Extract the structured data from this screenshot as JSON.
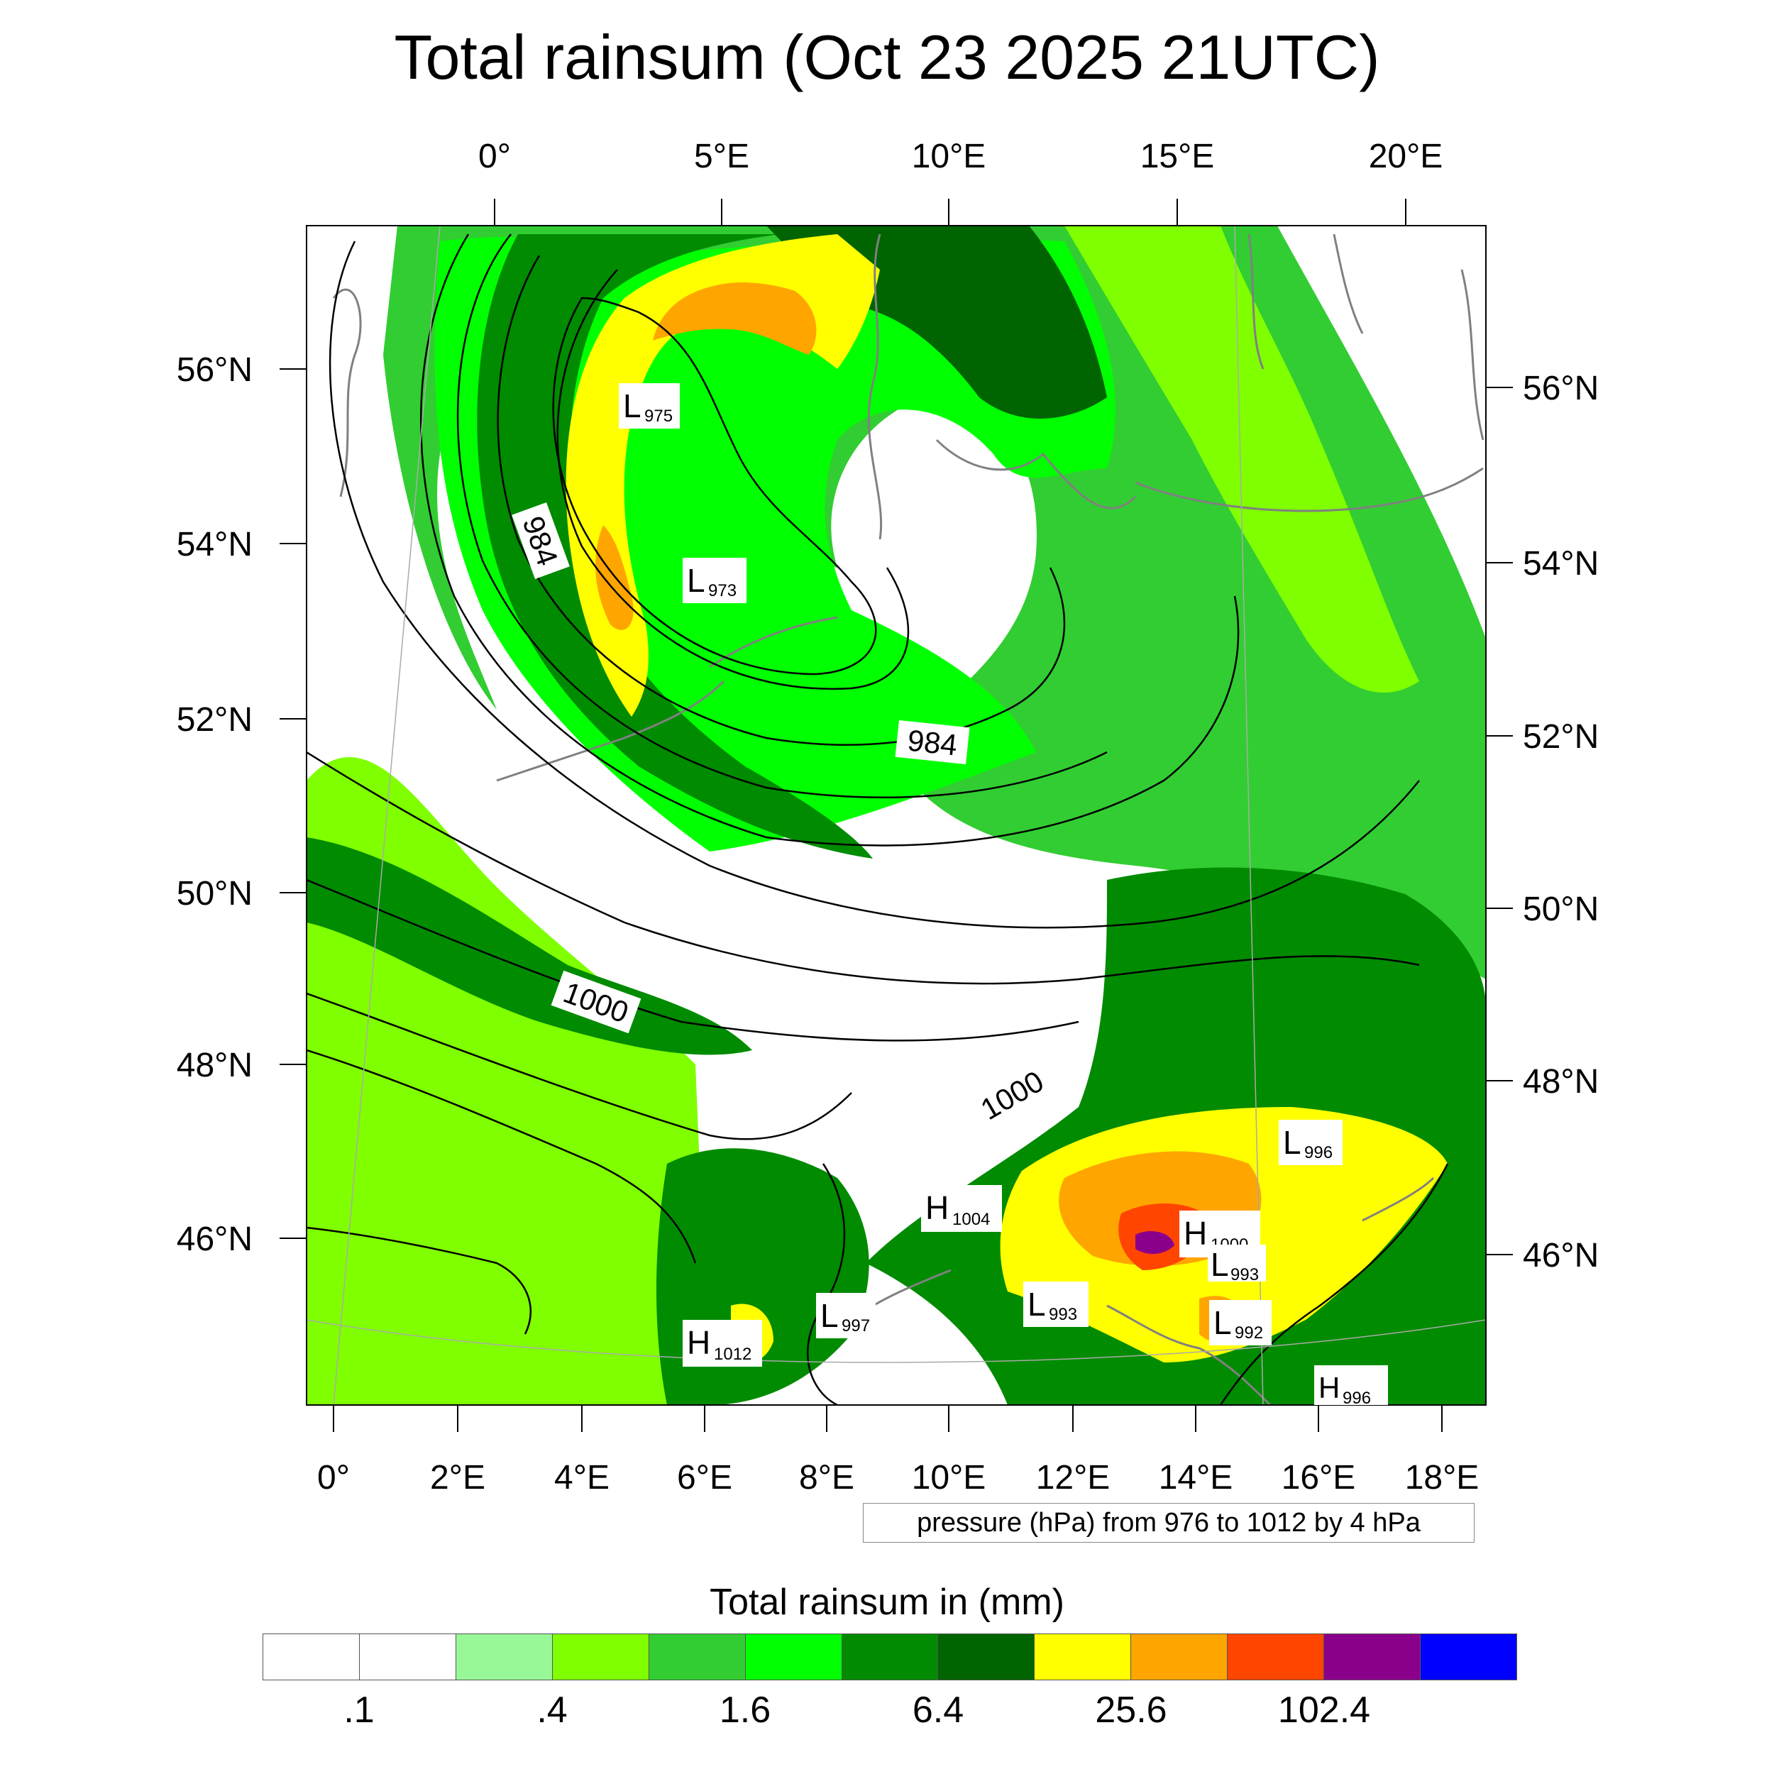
{
  "title": "Total rainsum (Oct 23 2025 21UTC)",
  "top_lon_labels": [
    "0°",
    "5°E",
    "10°E",
    "15°E",
    "20°E"
  ],
  "bottom_lon_labels": [
    "0°",
    "2°E",
    "4°E",
    "6°E",
    "8°E",
    "10°E",
    "12°E",
    "14°E",
    "16°E",
    "18°E"
  ],
  "left_lat_labels": [
    "56°N",
    "54°N",
    "52°N",
    "50°N",
    "48°N",
    "46°N"
  ],
  "right_lat_labels": [
    "56°N",
    "54°N",
    "52°N",
    "50°N",
    "48°N",
    "46°N"
  ],
  "isobar_labels": [
    "984",
    "984",
    "1000",
    "1000"
  ],
  "pressure_centers": [
    {
      "type": "L",
      "value": "975"
    },
    {
      "type": "L",
      "value": "973"
    },
    {
      "type": "L",
      "value": "996"
    },
    {
      "type": "H",
      "value": "1004"
    },
    {
      "type": "H",
      "value": "1000"
    },
    {
      "type": "L",
      "value": "993"
    },
    {
      "type": "L",
      "value": "993"
    },
    {
      "type": "L",
      "value": "992"
    },
    {
      "type": "L",
      "value": "997"
    },
    {
      "type": "H",
      "value": "1012"
    },
    {
      "type": "H",
      "value": "996"
    }
  ],
  "contour_note": "pressure (hPa) from 976 to 1012 by 4 hPa",
  "colorbar": {
    "title": "Total rainsum in (mm)",
    "colors": [
      "#ffffff",
      "#ffffff",
      "#98f898",
      "#7fff00",
      "#32cd32",
      "#00ff00",
      "#008b00",
      "#006400",
      "#ffff00",
      "#ffa500",
      "#ff4500",
      "#8b008b",
      "#0000ff"
    ],
    "labels": [
      ".1",
      ".4",
      "1.6",
      "6.4",
      "25.6",
      "102.4"
    ]
  },
  "colors": {
    "light_green": "#98f898",
    "chartreuse": "#7fff00",
    "lime_green": "#32cd32",
    "green": "#00ff00",
    "dark_green": "#008b00",
    "darker_green": "#006400",
    "yellow": "#ffff00",
    "orange": "#ffa500",
    "red_orange": "#ff4500",
    "purple": "#8b008b",
    "coast": "#808080"
  }
}
